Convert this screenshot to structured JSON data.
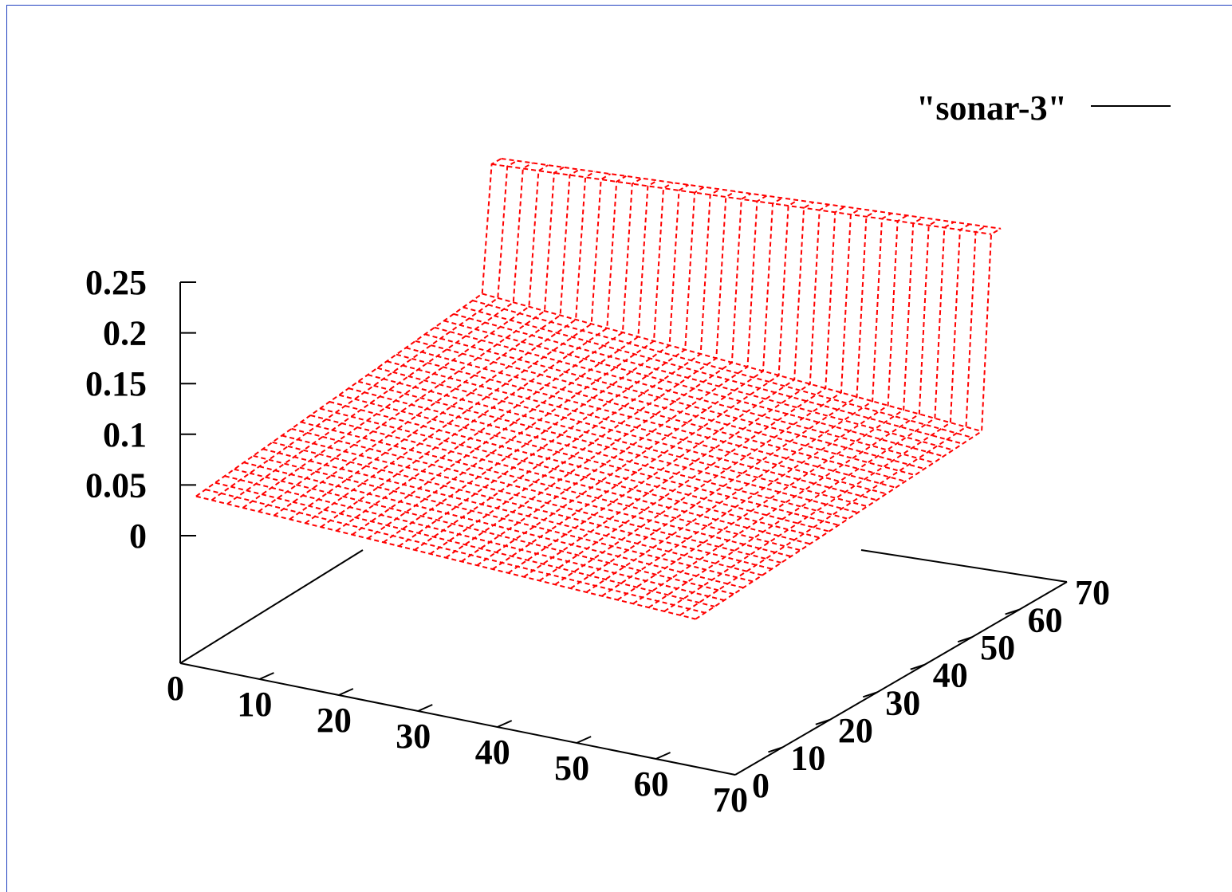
{
  "chart_data": {
    "type": "surface",
    "legend": {
      "label": "\"sonar-3\"",
      "placement": "top-right"
    },
    "x_axis": {
      "range": [
        0,
        70
      ],
      "ticks": [
        0,
        10,
        20,
        30,
        40,
        50,
        60,
        70
      ]
    },
    "y_axis": {
      "range": [
        0,
        70
      ],
      "ticks": [
        0,
        10,
        20,
        30,
        40,
        50,
        60,
        70
      ]
    },
    "z_axis": {
      "range": [
        0,
        0.25
      ],
      "ticks": [
        "0",
        "0.05",
        "0.1",
        "0.15",
        "0.2",
        "0.25"
      ]
    },
    "grid": false,
    "surface": {
      "grid_size": 64,
      "description_points": [
        {
          "x": 0,
          "y": 0,
          "z": 0.055
        },
        {
          "x": 0,
          "y": 64,
          "z": 0.1
        },
        {
          "x": 64,
          "y": 0,
          "z": 0.0
        },
        {
          "x": 64,
          "y": 64,
          "z": 0.09
        },
        {
          "x": 0,
          "y": 4,
          "z": 0.05
        },
        {
          "x": 0,
          "y": 62,
          "z": 0.2
        },
        {
          "x": 64,
          "y": 62,
          "z": 0.23
        }
      ]
    },
    "colors": {
      "series": "#ff0000",
      "axes": "#000000",
      "border": "#1f3fbf"
    }
  }
}
